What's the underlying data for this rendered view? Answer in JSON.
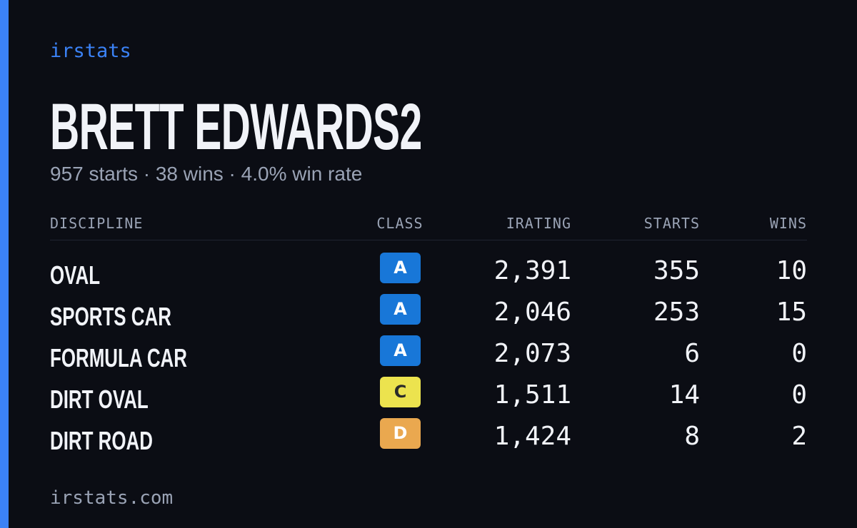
{
  "brand": "irstats",
  "driver": {
    "name": "BRETT EDWARDS2",
    "summary": "957 starts · 38 wins · 4.0% win rate"
  },
  "table": {
    "headers": [
      "DISCIPLINE",
      "CLASS",
      "IRATING",
      "STARTS",
      "WINS"
    ],
    "rows": [
      {
        "discipline": "OVAL",
        "class": "A",
        "class_color": "#1877d8",
        "class_text_color": "#ffffff",
        "irating": "2,391",
        "starts": 355,
        "wins": 10
      },
      {
        "discipline": "SPORTS CAR",
        "class": "A",
        "class_color": "#1877d8",
        "class_text_color": "#ffffff",
        "irating": "2,046",
        "starts": 253,
        "wins": 15
      },
      {
        "discipline": "FORMULA CAR",
        "class": "A",
        "class_color": "#1877d8",
        "class_text_color": "#ffffff",
        "irating": "2,073",
        "starts": 6,
        "wins": 0
      },
      {
        "discipline": "DIRT OVAL",
        "class": "C",
        "class_color": "#ece34e",
        "class_text_color": "#2a2a2a",
        "irating": "1,511",
        "starts": 14,
        "wins": 0
      },
      {
        "discipline": "DIRT ROAD",
        "class": "D",
        "class_color": "#eaa84f",
        "class_text_color": "#ffffff",
        "irating": "1,424",
        "starts": 8,
        "wins": 2
      }
    ]
  },
  "footer": "irstats.com"
}
